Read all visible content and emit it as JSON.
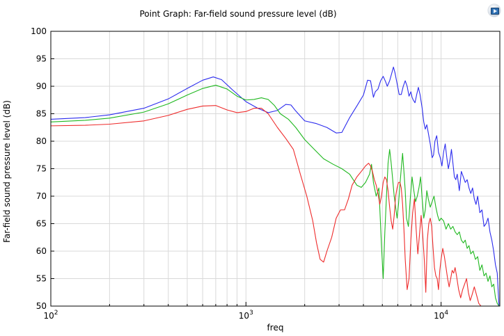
{
  "title": "Point Graph: Far-field sound pressure level (dB)",
  "logo": "comsol-badge-icon",
  "chart_data": {
    "type": "line",
    "title": "Point Graph: Far-field sound pressure level (dB)",
    "xlabel": "freq",
    "ylabel": "Far-field sound pressure level (dB)",
    "xscale": "log",
    "xlim": [
      100,
      20000
    ],
    "ylim": [
      50,
      100
    ],
    "grid": true,
    "yticks": [
      "50",
      "55",
      "60",
      "65",
      "70",
      "75",
      "80",
      "85",
      "90",
      "95",
      "100"
    ],
    "xticks": [
      {
        "base": "10",
        "exp": "2",
        "value": 100
      },
      {
        "base": "10",
        "exp": "3",
        "value": 1000
      },
      {
        "base": "10",
        "exp": "4",
        "value": 10000
      }
    ],
    "series": [
      {
        "color": "#2b2bee",
        "x": [
          100,
          150,
          200,
          300,
          400,
          500,
          600,
          680,
          750,
          850,
          1000,
          1150,
          1300,
          1450,
          1600,
          1700,
          1800,
          2000,
          2300,
          2600,
          2900,
          3100,
          3400,
          3700,
          4000,
          4200,
          4350,
          4500,
          4600,
          4750,
          4900,
          5050,
          5200,
          5300,
          5450,
          5600,
          5700,
          5800,
          5950,
          6100,
          6250,
          6400,
          6550,
          6700,
          6850,
          7000,
          7100,
          7200,
          7350,
          7500,
          7650,
          7800,
          8000,
          8150,
          8300,
          8450,
          8600,
          8800,
          9000,
          9150,
          9300,
          9500,
          9700,
          9900,
          10100,
          10300,
          10500,
          10700,
          10900,
          11100,
          11300,
          11500,
          11700,
          11900,
          12100,
          12400,
          12700,
          13000,
          13300,
          13600,
          13900,
          14200,
          14500,
          14800,
          15100,
          15400,
          15800,
          16200,
          16600,
          17000,
          17400,
          17800,
          18200,
          18600,
          19000,
          19400,
          19800
        ],
        "y": [
          84.0,
          84.3,
          84.8,
          86.0,
          87.7,
          89.6,
          91.1,
          91.7,
          91.2,
          89.4,
          87.2,
          86.0,
          85.2,
          85.6,
          86.7,
          86.6,
          85.5,
          83.7,
          83.2,
          82.5,
          81.5,
          81.6,
          84.3,
          86.4,
          88.4,
          91.1,
          91.0,
          88.0,
          89.0,
          89.5,
          91.0,
          91.8,
          90.8,
          90.0,
          91.0,
          92.5,
          93.5,
          92.5,
          90.5,
          88.5,
          88.5,
          90.0,
          91.0,
          90.0,
          88.2,
          89.0,
          88.0,
          87.5,
          87.0,
          88.5,
          89.8,
          88.5,
          86.0,
          83.5,
          82.2,
          83.0,
          81.5,
          79.5,
          77.0,
          77.5,
          80.0,
          81.0,
          78.0,
          77.0,
          75.5,
          78.0,
          79.5,
          77.0,
          75.0,
          76.5,
          78.5,
          76.0,
          73.5,
          73.0,
          74.0,
          71.0,
          74.5,
          73.5,
          72.5,
          73.0,
          71.5,
          70.5,
          71.5,
          69.5,
          68.5,
          70.0,
          67.0,
          67.5,
          64.5,
          65.0,
          66.0,
          63.5,
          62.0,
          60.0,
          57.5,
          56.0,
          50.0
        ]
      },
      {
        "color": "#1fb81f",
        "x": [
          100,
          150,
          200,
          300,
          400,
          500,
          600,
          700,
          800,
          900,
          1000,
          1100,
          1200,
          1300,
          1400,
          1500,
          1650,
          1800,
          2000,
          2200,
          2500,
          2800,
          3100,
          3400,
          3700,
          3900,
          4100,
          4300,
          4400,
          4500,
          4650,
          4800,
          4950,
          5050,
          5150,
          5250,
          5350,
          5450,
          5550,
          5650,
          5750,
          5850,
          5950,
          6050,
          6150,
          6250,
          6350,
          6450,
          6550,
          6650,
          6800,
          6950,
          7100,
          7250,
          7400,
          7550,
          7700,
          7850,
          8000,
          8150,
          8300,
          8450,
          8600,
          8800,
          9000,
          9200,
          9400,
          9600,
          9800,
          10000,
          10300,
          10600,
          10900,
          11200,
          11500,
          11800,
          12100,
          12400,
          12700,
          13000,
          13300,
          13600,
          13900,
          14200,
          14600,
          15000,
          15400,
          15800,
          16200,
          16600,
          17000,
          17400,
          17800,
          18200,
          18600,
          19000,
          19400,
          19800
        ],
        "y": [
          83.5,
          83.8,
          84.2,
          85.3,
          86.8,
          88.4,
          89.6,
          90.2,
          89.5,
          88.2,
          87.5,
          87.6,
          87.9,
          87.6,
          86.5,
          85.0,
          84.0,
          82.5,
          80.3,
          78.8,
          76.8,
          75.8,
          75.0,
          74.0,
          72.0,
          71.6,
          72.5,
          74.0,
          75.8,
          72.5,
          70.0,
          71.5,
          61.0,
          55.0,
          63.5,
          70.0,
          76.0,
          78.5,
          76.0,
          73.0,
          70.0,
          68.0,
          66.0,
          68.5,
          72.0,
          75.0,
          77.8,
          74.5,
          71.0,
          66.0,
          64.5,
          69.5,
          73.5,
          71.0,
          69.0,
          70.0,
          71.5,
          73.5,
          69.5,
          66.0,
          67.5,
          71.0,
          69.5,
          68.0,
          69.0,
          70.0,
          68.0,
          66.5,
          65.5,
          66.0,
          65.5,
          64.0,
          65.0,
          64.0,
          64.5,
          63.5,
          63.0,
          63.5,
          62.0,
          61.5,
          62.0,
          60.5,
          61.0,
          59.5,
          60.0,
          58.5,
          59.0,
          56.5,
          57.5,
          55.5,
          56.0,
          54.5,
          55.5,
          53.5,
          54.0,
          51.5,
          50.5,
          50.0
        ]
      },
      {
        "color": "#ee2b2b",
        "x": [
          100,
          150,
          200,
          300,
          400,
          500,
          600,
          700,
          800,
          900,
          1000,
          1100,
          1200,
          1300,
          1450,
          1600,
          1750,
          1900,
          2050,
          2200,
          2300,
          2400,
          2500,
          2600,
          2750,
          2900,
          3050,
          3200,
          3350,
          3500,
          3700,
          3900,
          4100,
          4250,
          4350,
          4450,
          4550,
          4650,
          4750,
          4850,
          4950,
          5050,
          5150,
          5250,
          5350,
          5450,
          5550,
          5650,
          5750,
          5850,
          5950,
          6050,
          6150,
          6250,
          6350,
          6450,
          6550,
          6700,
          6850,
          7000,
          7150,
          7300,
          7450,
          7600,
          7750,
          7900,
          8050,
          8200,
          8350,
          8500,
          8650,
          8800,
          8950,
          9100,
          9250,
          9400,
          9550,
          9700,
          9850,
          10000,
          10200,
          10400,
          10600,
          10800,
          11000,
          11200,
          11400,
          11600,
          11800,
          12000,
          12300,
          12600,
          12900,
          13200,
          13500,
          13800,
          14100,
          14400,
          14800,
          15200,
          15600,
          16000
        ],
        "y": [
          82.8,
          82.9,
          83.1,
          83.7,
          84.7,
          85.8,
          86.4,
          86.5,
          85.7,
          85.2,
          85.4,
          86.0,
          86.0,
          85.0,
          82.5,
          80.5,
          78.5,
          74.0,
          70.0,
          65.5,
          61.5,
          58.5,
          58.0,
          60.0,
          62.5,
          66.0,
          67.5,
          67.5,
          69.5,
          72.0,
          73.5,
          74.5,
          75.5,
          76.0,
          75.5,
          74.5,
          73.0,
          72.0,
          70.5,
          68.5,
          70.0,
          72.5,
          73.5,
          73.0,
          71.0,
          68.0,
          65.5,
          64.0,
          66.5,
          70.0,
          71.5,
          72.5,
          72.5,
          71.5,
          68.5,
          64.0,
          58.5,
          53.0,
          55.0,
          62.0,
          67.0,
          69.5,
          64.0,
          59.5,
          63.0,
          66.5,
          63.0,
          58.5,
          52.5,
          62.0,
          65.0,
          66.0,
          64.5,
          60.5,
          57.0,
          55.5,
          55.0,
          53.0,
          56.5,
          58.5,
          60.5,
          59.0,
          57.0,
          55.0,
          53.5,
          55.0,
          56.5,
          56.0,
          57.0,
          55.5,
          53.0,
          51.5,
          53.0,
          54.0,
          55.0,
          52.5,
          51.0,
          52.0,
          53.5,
          52.0,
          50.5,
          50.0
        ]
      }
    ]
  }
}
